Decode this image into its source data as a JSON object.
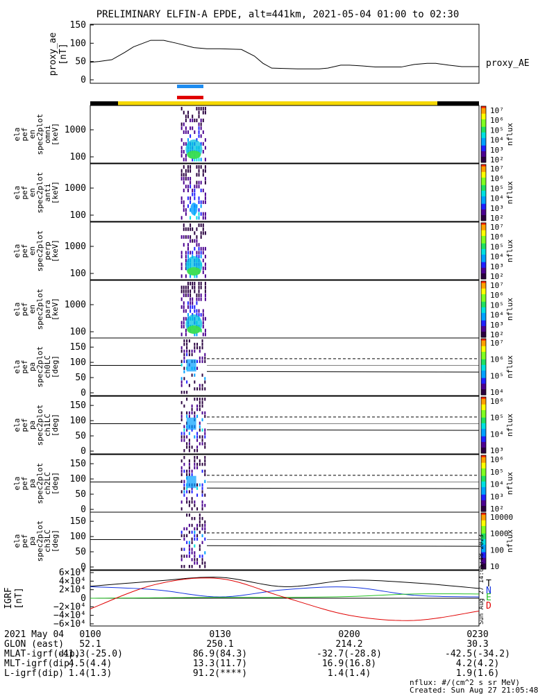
{
  "figure": {
    "title": "PRELIMINARY ELFIN-A EPDE, alt=441km, 2021-05-04 01:00 to 02:30",
    "footer_units": "nflux: #/(cm^2 s sr MeV)",
    "footer_created": "Created: Sun Aug 27 21:05:48 2023",
    "side_timestamp": "Sun Aug 27 14:05:48 2023",
    "colors": {
      "ae_line": "#000000",
      "bar_yellow": "#f5d800",
      "bar_black": "#000000",
      "bar_blue": "#1e8cf0",
      "bar_red": "#e00000",
      "grf_T": "#000000",
      "grf_N": "#1030e0",
      "grf_E": "#20c020",
      "grf_D": "#e00000"
    }
  },
  "ae_panel": {
    "ylabel_lines": [
      "proxy_ae",
      "[nT]"
    ],
    "yticks": [
      "150",
      "100",
      "50",
      "0"
    ],
    "legend": "proxy_AE"
  },
  "spectra_panels": [
    {
      "label_lines": [
        "ela",
        "pef",
        "en",
        "spec2plot",
        "omni",
        "[keV]"
      ],
      "yticks": [
        "1000",
        "100"
      ]
    },
    {
      "label_lines": [
        "ela",
        "pef",
        "en",
        "spec2plot",
        "anti",
        "[keV]"
      ],
      "yticks": [
        "1000",
        "100"
      ]
    },
    {
      "label_lines": [
        "ela",
        "pef",
        "en",
        "spec2plot",
        "perp",
        "[keV]"
      ],
      "yticks": [
        "1000",
        "100"
      ]
    },
    {
      "label_lines": [
        "ela",
        "pef",
        "en",
        "spec2plot",
        "para",
        "[keV]"
      ],
      "yticks": [
        "1000",
        "100"
      ]
    }
  ],
  "pa_panels": [
    {
      "label_lines": [
        "ela",
        "pef",
        "pa",
        "spec2plot",
        "ch0LC",
        "[deg]"
      ],
      "yticks": [
        "150",
        "100",
        "50",
        "0"
      ]
    },
    {
      "label_lines": [
        "ela",
        "pef",
        "pa",
        "spec2plot",
        "ch1LC",
        "[deg]"
      ],
      "yticks": [
        "150",
        "100",
        "50",
        "0"
      ]
    },
    {
      "label_lines": [
        "ela",
        "pef",
        "pa",
        "spec2plot",
        "ch2LC",
        "[deg]"
      ],
      "yticks": [
        "150",
        "100",
        "50",
        "0"
      ]
    },
    {
      "label_lines": [
        "ela",
        "pef",
        "pa",
        "spec2plot",
        "ch3LC",
        "[deg]"
      ],
      "yticks": [
        "150",
        "100",
        "50",
        "0"
      ]
    }
  ],
  "colorbars": [
    {
      "ticks": [
        "10⁷",
        "10⁶",
        "10⁵",
        "10⁴",
        "10³",
        "10²"
      ],
      "label": "nflux"
    },
    {
      "ticks": [
        "10⁷",
        "10⁶",
        "10⁵",
        "10⁴",
        "10³",
        "10²"
      ],
      "label": "nflux"
    },
    {
      "ticks": [
        "10⁷",
        "10⁶",
        "10⁵",
        "10⁴",
        "10³",
        "10²"
      ],
      "label": "nflux"
    },
    {
      "ticks": [
        "10⁷",
        "10⁶",
        "10⁵",
        "10⁴",
        "10³",
        "10²"
      ],
      "label": "nflux"
    },
    {
      "ticks": [
        "10⁷",
        "10⁶",
        "10⁵",
        "10⁴"
      ],
      "label": "nflux"
    },
    {
      "ticks": [
        "10⁶",
        "10⁵",
        "10⁴",
        "10³"
      ],
      "label": "nflux"
    },
    {
      "ticks": [
        "10⁶",
        "10⁵",
        "10⁴",
        "10³",
        "10²"
      ],
      "label": "nflux"
    },
    {
      "ticks": [
        "10000",
        "1000",
        "100",
        "10"
      ],
      "label": "nflux"
    }
  ],
  "grf_panel": {
    "ylabel_lines": [
      "IGRF",
      "[nT]"
    ],
    "yticks": [
      "6×10⁴",
      "4×10⁴",
      "2×10⁴",
      "0",
      "−2×10⁴",
      "−4×10⁴",
      "−6×10⁴"
    ],
    "legend": [
      "T",
      "N",
      "E",
      "D"
    ]
  },
  "time_axis": {
    "row_labels": [
      "2021 May 04",
      "GLON (east)",
      "MLAT-igrf(dip)",
      "MLT-igrf(dip)",
      "L-igrf(dip)"
    ],
    "columns": [
      {
        "time": "0100",
        "values": [
          "52.1",
          "-41.3(-25.0)",
          "4.5(4.4)",
          "1.4(1.3)"
        ]
      },
      {
        "time": "0130",
        "values": [
          "250.1",
          "86.9(84.3)",
          "13.3(11.7)",
          "91.2(****)"
        ]
      },
      {
        "time": "0200",
        "values": [
          "214.2",
          "-32.7(-28.8)",
          "16.9(16.8)",
          "1.4(1.4)"
        ]
      },
      {
        "time": "0230",
        "values": [
          "30.3",
          "-42.5(-34.2)",
          "4.2(4.2)",
          "1.9(1.6)"
        ]
      }
    ]
  },
  "chart_data": {
    "type": "line",
    "title": "PRELIMINARY ELFIN-A EPDE, alt=441km, 2021-05-04 01:00 to 02:30",
    "x_unit": "minutes after 01:00",
    "xlim": [
      0,
      90
    ],
    "series": [
      {
        "name": "proxy_AE",
        "x": [
          0,
          2,
          5,
          8,
          10,
          14,
          17,
          20,
          24,
          27,
          30,
          35,
          38,
          40,
          42,
          48,
          53,
          55,
          58,
          60,
          63,
          66,
          69,
          72,
          75,
          78,
          80,
          83,
          86,
          90
        ],
        "y": [
          48,
          50,
          55,
          75,
          90,
          108,
          108,
          100,
          88,
          85,
          85,
          83,
          65,
          45,
          32,
          30,
          30,
          32,
          40,
          40,
          38,
          35,
          35,
          35,
          42,
          45,
          45,
          40,
          36,
          36
        ]
      },
      {
        "name": "T",
        "x": [
          0,
          15,
          30,
          45,
          60,
          75,
          90
        ],
        "y": [
          28000,
          40000,
          49000,
          27000,
          42000,
          36000,
          23000
        ]
      },
      {
        "name": "N",
        "x": [
          0,
          15,
          30,
          45,
          60,
          75,
          90
        ],
        "y": [
          27000,
          20000,
          3000,
          20000,
          26000,
          7000,
          3000
        ]
      },
      {
        "name": "E",
        "x": [
          0,
          15,
          30,
          45,
          60,
          75,
          90
        ],
        "y": [
          0,
          1000,
          2000,
          2000,
          4000,
          10000,
          10000
        ]
      },
      {
        "name": "D",
        "x": [
          0,
          15,
          30,
          45,
          60,
          75,
          90
        ],
        "y": [
          -25000,
          32000,
          46000,
          2000,
          -40000,
          -52000,
          -30000
        ]
      }
    ],
    "ae_ylim": [
      0,
      150
    ],
    "igrf_ylim": [
      -65000,
      65000
    ],
    "burst_interval_minutes": [
      21,
      27
    ]
  }
}
